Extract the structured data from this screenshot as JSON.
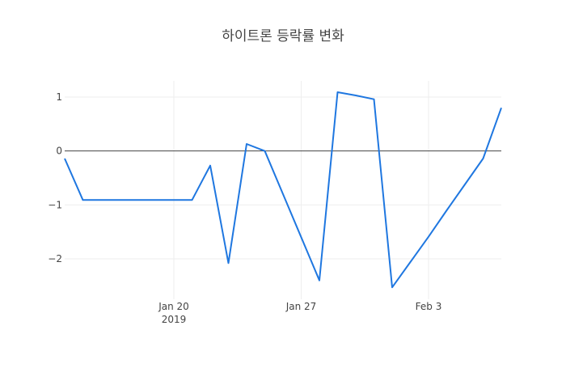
{
  "chart_data": {
    "type": "line",
    "title": "하이트론 등락률 변화",
    "xlabel": "",
    "ylabel": "",
    "x": [
      "2019-01-14",
      "2019-01-15",
      "2019-01-16",
      "2019-01-17",
      "2019-01-18",
      "2019-01-19",
      "2019-01-20",
      "2019-01-21",
      "2019-01-22",
      "2019-01-23",
      "2019-01-24",
      "2019-01-25",
      "2019-01-26",
      "2019-01-27",
      "2019-01-28",
      "2019-01-29",
      "2019-01-30",
      "2019-01-31",
      "2019-02-01",
      "2019-02-02",
      "2019-02-03",
      "2019-02-04",
      "2019-02-05",
      "2019-02-06",
      "2019-02-07"
    ],
    "series": [
      {
        "name": "",
        "color": "#1f77e0",
        "values": [
          -0.14,
          -0.91,
          -0.91,
          -0.91,
          -0.91,
          -0.91,
          -0.91,
          -0.91,
          -0.27,
          -2.08,
          0.13,
          0.0,
          -0.8,
          -1.6,
          -2.4,
          1.09,
          1.03,
          0.96,
          -2.53,
          -2.06,
          -1.59,
          -1.1,
          -0.62,
          -0.14,
          0.8
        ]
      }
    ],
    "xticks": [
      {
        "date": "2019-01-20",
        "label": "Jan 20",
        "sublabel": "2019"
      },
      {
        "date": "2019-01-27",
        "label": "Jan 27",
        "sublabel": ""
      },
      {
        "date": "2019-02-03",
        "label": "Feb 3",
        "sublabel": ""
      }
    ],
    "yticks": [
      1,
      0,
      -1,
      -2
    ],
    "ytick_labels": [
      "1",
      "0",
      "−1",
      "−2"
    ],
    "xlim": [
      "2019-01-14",
      "2019-02-07"
    ],
    "ylim": [
      -2.75,
      1.3
    ],
    "grid": true,
    "zero_line": true
  }
}
